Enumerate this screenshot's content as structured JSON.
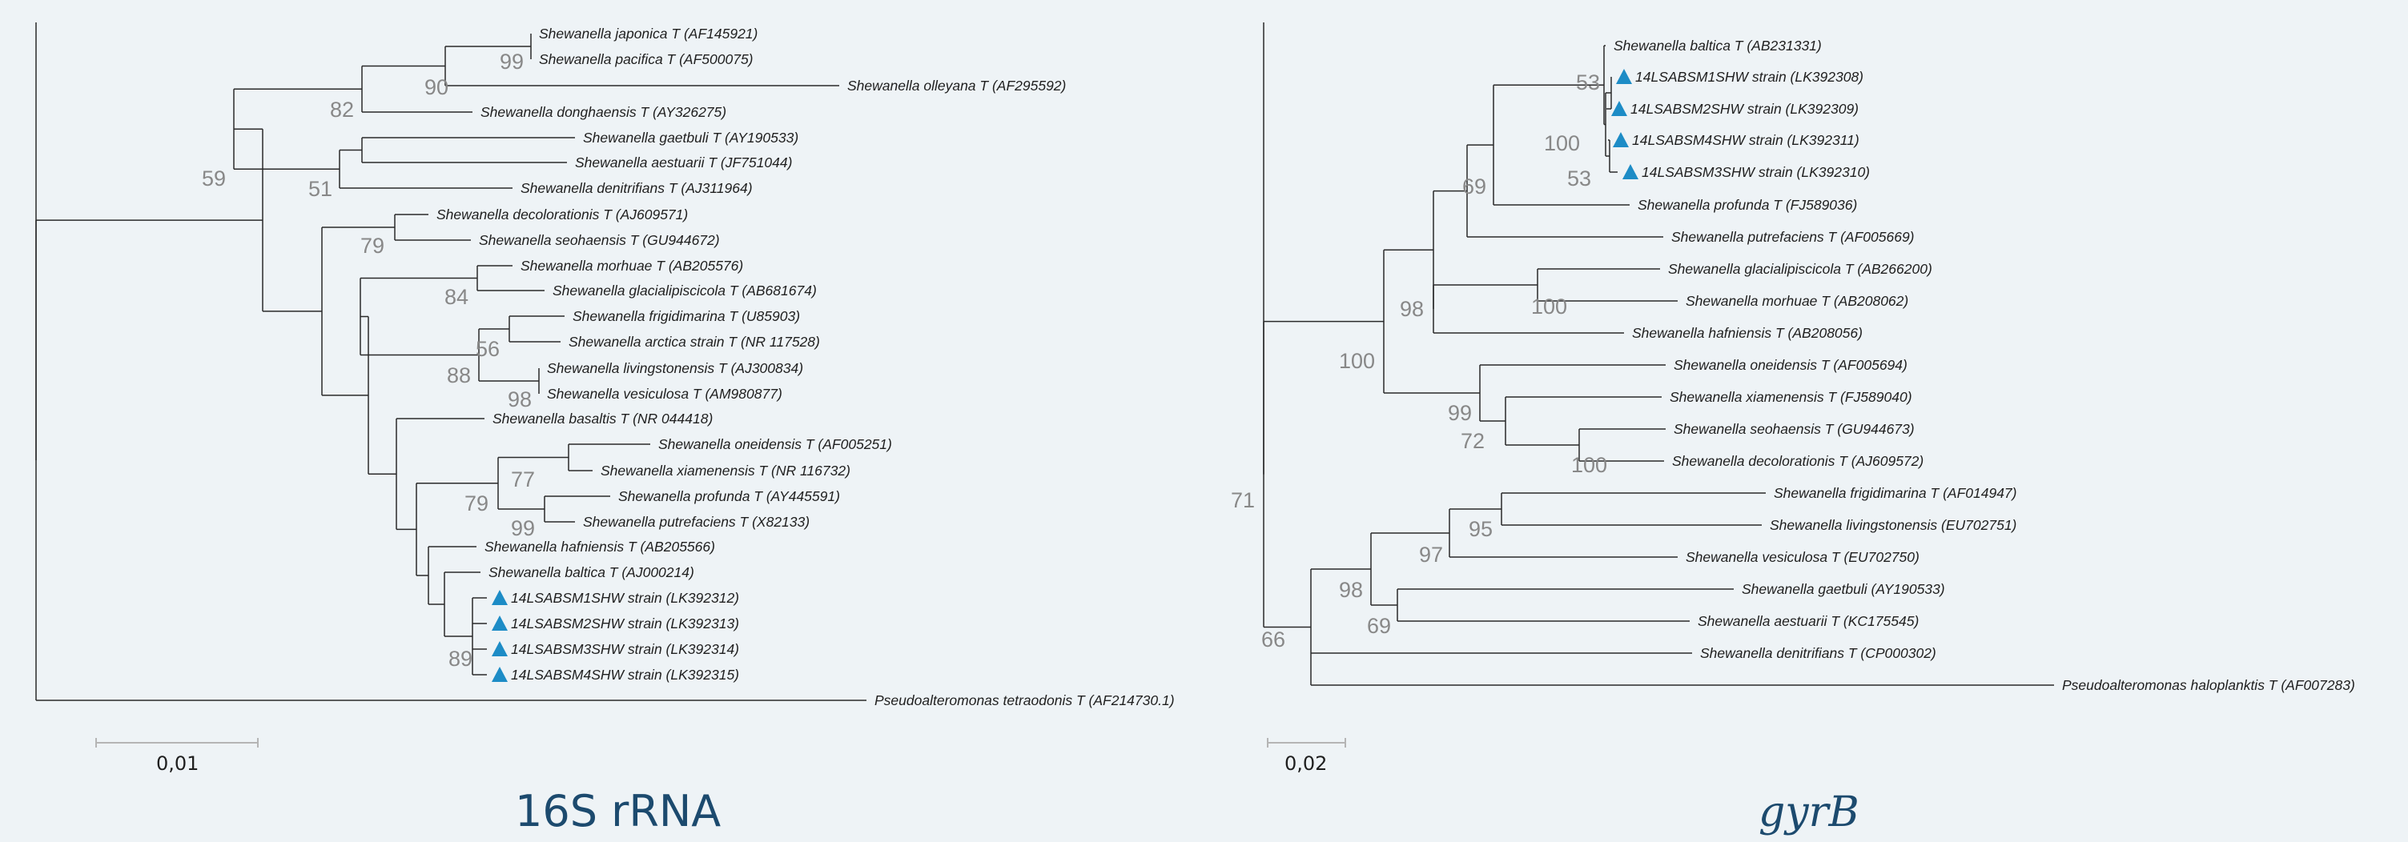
{
  "colors": {
    "background": "#eef3f6",
    "accent_triangle": "#1d8cc6",
    "title": "#1c4a6e",
    "bootstrap": "#888888"
  },
  "left_tree": {
    "title": "16S rRNA",
    "scale_label": "0,01",
    "leaves": [
      {
        "id": "L_japonica",
        "label": "Shewanella japonica T (AF145921)",
        "marked": false
      },
      {
        "id": "L_pacifica",
        "label": "Shewanella pacifica T (AF500075)",
        "marked": false
      },
      {
        "id": "L_olleyana",
        "label": "Shewanella olleyana T (AF295592)",
        "marked": false
      },
      {
        "id": "L_donghaensis",
        "label": "Shewanella donghaensis T (AY326275)",
        "marked": false
      },
      {
        "id": "L_gaetbuli",
        "label": "Shewanella gaetbuli T (AY190533)",
        "marked": false
      },
      {
        "id": "L_aestuarii",
        "label": "Shewanella aestuarii T (JF751044)",
        "marked": false
      },
      {
        "id": "L_denitrificans",
        "label": "Shewanella denitrifians T (AJ311964)",
        "marked": false
      },
      {
        "id": "L_decolorationis",
        "label": "Shewanella decolorationis T (AJ609571)",
        "marked": false
      },
      {
        "id": "L_seohaensis",
        "label": "Shewanella seohaensis T (GU944672)",
        "marked": false
      },
      {
        "id": "L_morhuae",
        "label": "Shewanella morhuae T (AB205576)",
        "marked": false
      },
      {
        "id": "L_glacialipiscicola",
        "label": "Shewanella glacialipiscicola T (AB681674)",
        "marked": false
      },
      {
        "id": "L_frigidimarina",
        "label": "Shewanella frigidimarina T (U85903)",
        "marked": false
      },
      {
        "id": "L_arctica",
        "label": "Shewanella arctica strain T (NR 117528)",
        "marked": false
      },
      {
        "id": "L_livingstonensis",
        "label": "Shewanella livingstonensis T (AJ300834)",
        "marked": false
      },
      {
        "id": "L_vesiculosa",
        "label": "Shewanella vesiculosa T (AM980877)",
        "marked": false
      },
      {
        "id": "L_basaltis",
        "label": "Shewanella basaltis T (NR 044418)",
        "marked": false
      },
      {
        "id": "L_oneidensis",
        "label": "Shewanella oneidensis T (AF005251)",
        "marked": false
      },
      {
        "id": "L_xiamenensis",
        "label": "Shewanella xiamenensis T (NR 116732)",
        "marked": false
      },
      {
        "id": "L_profunda",
        "label": "Shewanella profunda T (AY445591)",
        "marked": false
      },
      {
        "id": "L_putrefaciens",
        "label": "Shewanella putrefaciens T (X82133)",
        "marked": false
      },
      {
        "id": "L_hafniensis",
        "label": "Shewanella hafniensis T (AB205566)",
        "marked": false
      },
      {
        "id": "L_baltica",
        "label": "Shewanella baltica T (AJ000214)",
        "marked": false
      },
      {
        "id": "L_S1",
        "label": "14LSABSM1SHW strain (LK392312)",
        "marked": true
      },
      {
        "id": "L_S2",
        "label": "14LSABSM2SHW strain (LK392313)",
        "marked": true
      },
      {
        "id": "L_S3",
        "label": "14LSABSM3SHW strain (LK392314)",
        "marked": true
      },
      {
        "id": "L_S4",
        "label": "14LSABSM4SHW strain (LK392315)",
        "marked": true
      },
      {
        "id": "L_pseudo",
        "label": "Pseudoalteromonas tetraodonis T (AF214730.1)",
        "marked": false
      }
    ],
    "bootstrap": [
      {
        "node": "N_japac",
        "value": "99"
      },
      {
        "node": "N_ol",
        "value": "90"
      },
      {
        "node": "N_dong",
        "value": "82"
      },
      {
        "node": "N_ga",
        "value": "51"
      },
      {
        "node": "N_dec",
        "value": "79"
      },
      {
        "node": "N_mor",
        "value": "84"
      },
      {
        "node": "N_fr",
        "value": "56"
      },
      {
        "node": "N_liv",
        "value": "98"
      },
      {
        "node": "N_frl",
        "value": "88"
      },
      {
        "node": "N_one",
        "value": "77"
      },
      {
        "node": "N_pro",
        "value": "99"
      },
      {
        "node": "N_onepro",
        "value": "79"
      },
      {
        "node": "N_s",
        "value": "89"
      },
      {
        "node": "N_top",
        "value": "59"
      }
    ]
  },
  "right_tree": {
    "title": "gyrB",
    "scale_label": "0,02",
    "leaves": [
      {
        "id": "R_baltica",
        "label": "Shewanella baltica T (AB231331)",
        "marked": false
      },
      {
        "id": "R_S1",
        "label": "14LSABSM1SHW strain (LK392308)",
        "marked": true
      },
      {
        "id": "R_S2",
        "label": "14LSABSM2SHW strain (LK392309)",
        "marked": true
      },
      {
        "id": "R_S4",
        "label": "14LSABSM4SHW strain (LK392311)",
        "marked": true
      },
      {
        "id": "R_S3",
        "label": "14LSABSM3SHW strain (LK392310)",
        "marked": true
      },
      {
        "id": "R_profunda",
        "label": "Shewanella profunda T (FJ589036)",
        "marked": false
      },
      {
        "id": "R_putrefaciens",
        "label": "Shewanella putrefaciens T (AF005669)",
        "marked": false
      },
      {
        "id": "R_glacialipiscicola",
        "label": "Shewanella glacialipiscicola T (AB266200)",
        "marked": false
      },
      {
        "id": "R_morhuae",
        "label": "Shewanella morhuae T (AB208062)",
        "marked": false
      },
      {
        "id": "R_hafniensis",
        "label": "Shewanella hafniensis T (AB208056)",
        "marked": false
      },
      {
        "id": "R_oneidensis",
        "label": "Shewanella oneidensis T (AF005694)",
        "marked": false
      },
      {
        "id": "R_xiamenensis",
        "label": "Shewanella xiamenensis T (FJ589040)",
        "marked": false
      },
      {
        "id": "R_seohaensis",
        "label": "Shewanella seohaensis T (GU944673)",
        "marked": false
      },
      {
        "id": "R_decolorationis",
        "label": "Shewanella decolorationis T (AJ609572)",
        "marked": false
      },
      {
        "id": "R_frigidimarina",
        "label": "Shewanella frigidimarina T (AF014947)",
        "marked": false
      },
      {
        "id": "R_livingstonensis",
        "label": "Shewanella livingstonensis (EU702751)",
        "marked": false
      },
      {
        "id": "R_vesiculosa",
        "label": "Shewanella vesiculosa T (EU702750)",
        "marked": false
      },
      {
        "id": "R_gaetbuli",
        "label": "Shewanella gaetbuli (AY190533)",
        "marked": false
      },
      {
        "id": "R_aestuarii",
        "label": "Shewanella aestuarii T (KC175545)",
        "marked": false
      },
      {
        "id": "R_denitrificans",
        "label": "Shewanella denitrifians T (CP000302)",
        "marked": false
      },
      {
        "id": "R_pseudo",
        "label": "Pseudoalteromonas haloplanktis T (AF007283)",
        "marked": false
      }
    ],
    "bootstrap": [
      {
        "node": "M_b",
        "value": "53"
      },
      {
        "node": "M_c",
        "value": "53"
      },
      {
        "node": "M_d",
        "value": "100"
      },
      {
        "node": "M_e",
        "value": "69"
      },
      {
        "node": "M_g",
        "value": "100"
      },
      {
        "node": "M_i",
        "value": "98"
      },
      {
        "node": "M_k",
        "value": "100"
      },
      {
        "node": "M_l",
        "value": "72"
      },
      {
        "node": "M_m",
        "value": "99"
      },
      {
        "node": "M_n",
        "value": "100"
      },
      {
        "node": "M_o",
        "value": "95"
      },
      {
        "node": "M_p",
        "value": "97"
      },
      {
        "node": "M_q",
        "value": "69"
      },
      {
        "node": "M_r",
        "value": "98"
      },
      {
        "node": "M_s",
        "value": "66"
      },
      {
        "node": "M_t",
        "value": "71"
      }
    ]
  }
}
